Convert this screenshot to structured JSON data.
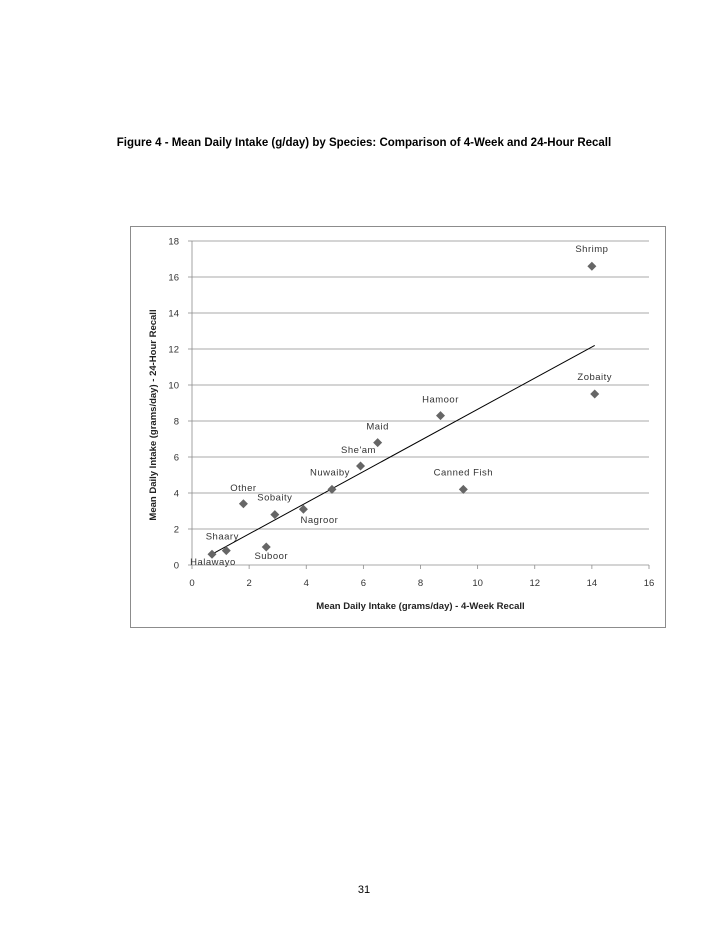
{
  "page": {
    "figure_title": "Figure 4 - Mean Daily Intake (g/day) by Species: Comparison of 4-Week and 24-Hour Recall",
    "page_number": "31"
  },
  "chart_data": {
    "type": "scatter",
    "title": "",
    "xlabel": "Mean Daily Intake (grams/day) - 4-Week Recall",
    "ylabel": "Mean Daily Intake (grams/day) - 24-Hour Recall",
    "xlim": [
      0,
      16
    ],
    "ylim": [
      0,
      18
    ],
    "x_ticks": [
      0,
      2,
      4,
      6,
      8,
      10,
      12,
      14,
      16
    ],
    "y_ticks": [
      0,
      2,
      4,
      6,
      8,
      10,
      12,
      14,
      16,
      18
    ],
    "grid": "horizontal",
    "legend": "none",
    "marker": "diamond",
    "marker_color": "#666666",
    "points": [
      {
        "label": "Shrimp",
        "x": 14.0,
        "y": 16.6
      },
      {
        "label": "Zobaity",
        "x": 14.1,
        "y": 9.5
      },
      {
        "label": "Hamoor",
        "x": 8.7,
        "y": 8.3
      },
      {
        "label": "Maid",
        "x": 6.5,
        "y": 6.8
      },
      {
        "label": "She'am",
        "x": 5.9,
        "y": 5.5
      },
      {
        "label": "Canned Fish",
        "x": 9.5,
        "y": 4.2
      },
      {
        "label": "Nuwaiby",
        "x": 4.9,
        "y": 4.2
      },
      {
        "label": "Other",
        "x": 1.8,
        "y": 3.4
      },
      {
        "label": "Sobaity",
        "x": 2.9,
        "y": 2.8
      },
      {
        "label": "Nagroor",
        "x": 3.9,
        "y": 3.1
      },
      {
        "label": "Shaary",
        "x": 1.2,
        "y": 0.8
      },
      {
        "label": "Halawayo",
        "x": 0.7,
        "y": 0.6
      },
      {
        "label": "Suboor",
        "x": 2.6,
        "y": 1.0
      }
    ],
    "trendline": {
      "type": "linear",
      "x_start": 0.7,
      "y_start": 0.6,
      "x_end": 14.1,
      "y_end": 12.2
    }
  }
}
